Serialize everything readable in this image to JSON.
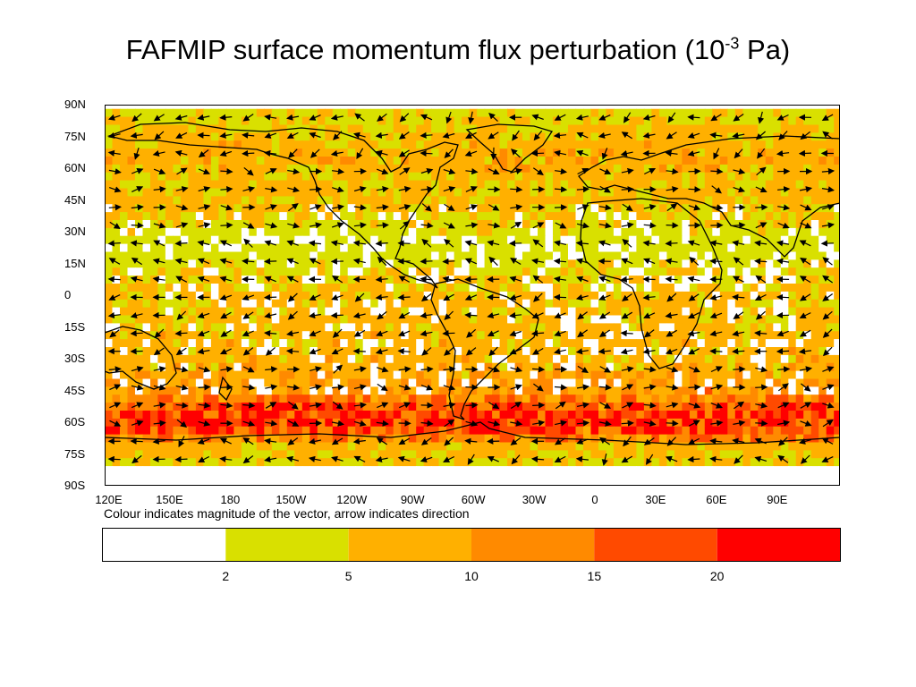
{
  "title_main": "FAFMIP surface momentum flux perturbation (10",
  "title_exp": "-3",
  "title_end": " Pa)",
  "caption": "Colour indicates magnitude of the vector, arrow indicates direction",
  "chart_data": {
    "type": "heatmap",
    "subtype": "vector field on world map",
    "title": "FAFMIP surface momentum flux perturbation (10-3 Pa)",
    "y_ticks": [
      "90N",
      "75N",
      "60N",
      "45N",
      "30N",
      "15N",
      "0",
      "15S",
      "30S",
      "45S",
      "60S",
      "75S",
      "90S"
    ],
    "y_tick_values": [
      90,
      75,
      60,
      45,
      30,
      15,
      0,
      -15,
      -30,
      -45,
      -60,
      -75,
      -90
    ],
    "x_ticks": [
      "120E",
      "150E",
      "180",
      "150W",
      "120W",
      "90W",
      "60W",
      "30W",
      "0",
      "30E",
      "60E",
      "90E"
    ],
    "x_tick_values": [
      120,
      150,
      180,
      210,
      240,
      270,
      300,
      330,
      360,
      390,
      420,
      450
    ],
    "xlim": [
      118,
      481
    ],
    "ylim": [
      -90,
      90
    ],
    "colorbar": {
      "boundaries": [
        2,
        5,
        10,
        15,
        20
      ],
      "tick_labels": [
        "2",
        "5",
        "10",
        "15",
        "20"
      ],
      "colors": [
        "#ffffff",
        "#d9e000",
        "#ffb000",
        "#ff8a00",
        "#ff4a00",
        "#ff0000"
      ]
    },
    "zonal_profile_magnitude_by_latitude": {
      "lat": [
        85,
        75,
        65,
        55,
        45,
        35,
        25,
        15,
        5,
        -5,
        -15,
        -25,
        -35,
        -45,
        -52,
        -56,
        -60,
        -64,
        -70,
        -78,
        -85
      ],
      "value": [
        4,
        7,
        8,
        6,
        6,
        4,
        3,
        4,
        6,
        6,
        7,
        7,
        8,
        11,
        18,
        22,
        20,
        16,
        6,
        5,
        0
      ]
    },
    "notes": "Colour indicates magnitude of the vector, arrow indicates direction"
  }
}
